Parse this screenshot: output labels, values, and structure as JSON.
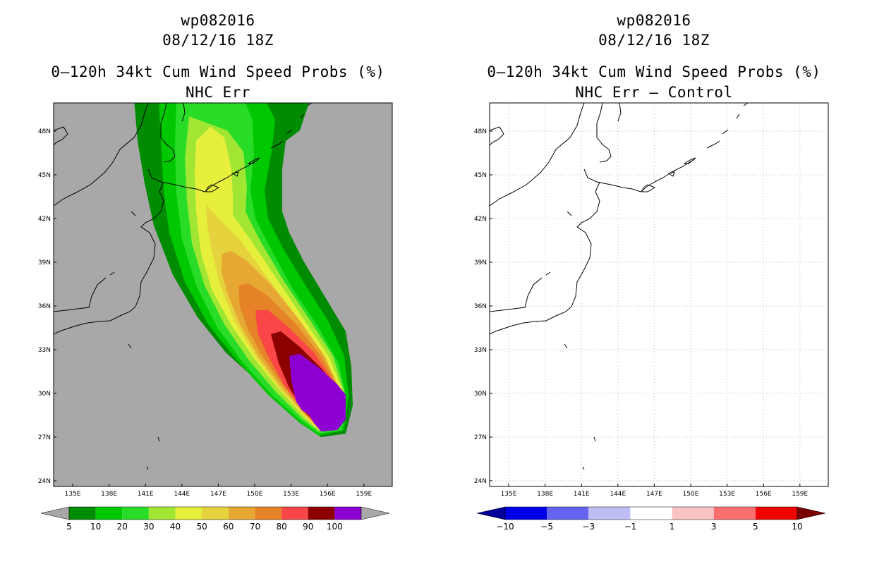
{
  "colors": {
    "land_left": "#a8a8a8",
    "background_right": "#ffffff",
    "coast": "#000000",
    "grid": "#bbbbbb"
  },
  "left_panel": {
    "storm_id": "wp082016",
    "datetime": "08/12/16 18Z",
    "title": "0–120h 34kt Cum Wind Speed Probs (%)",
    "subtitle": "NHC Err",
    "colorbar": {
      "labels": [
        "5",
        "10",
        "20",
        "30",
        "40",
        "50",
        "60",
        "70",
        "80",
        "90",
        "100"
      ],
      "colors": [
        "#008c00",
        "#00c800",
        "#28dc28",
        "#a0e632",
        "#e6f03c",
        "#e6d23c",
        "#e6a832",
        "#e68228",
        "#fa4646",
        "#8c0000",
        "#8c00d2"
      ],
      "under_color": "#a8a8a8",
      "over_color": "#a8a8a8"
    }
  },
  "right_panel": {
    "storm_id": "wp082016",
    "datetime": "08/12/16 18Z",
    "title": "0–120h 34kt Cum Wind Speed Probs (%)",
    "subtitle": "NHC Err – Control",
    "colorbar": {
      "labels": [
        "−10",
        "−5",
        "−3",
        "−1",
        "1",
        "3",
        "5",
        "10"
      ],
      "colors": [
        "#0000e6",
        "#6464f0",
        "#bebef5",
        "#ffffff",
        "#fac3c3",
        "#fa7070",
        "#f00000"
      ],
      "under_color": "#000096",
      "over_color": "#780000"
    }
  },
  "axes": {
    "lon_labels": [
      "135E",
      "138E",
      "141E",
      "144E",
      "147E",
      "150E",
      "153E",
      "156E",
      "159E"
    ],
    "lat_labels": [
      "48N",
      "45N",
      "42N",
      "39N",
      "36N",
      "33N",
      "30N",
      "27N",
      "24N"
    ]
  }
}
